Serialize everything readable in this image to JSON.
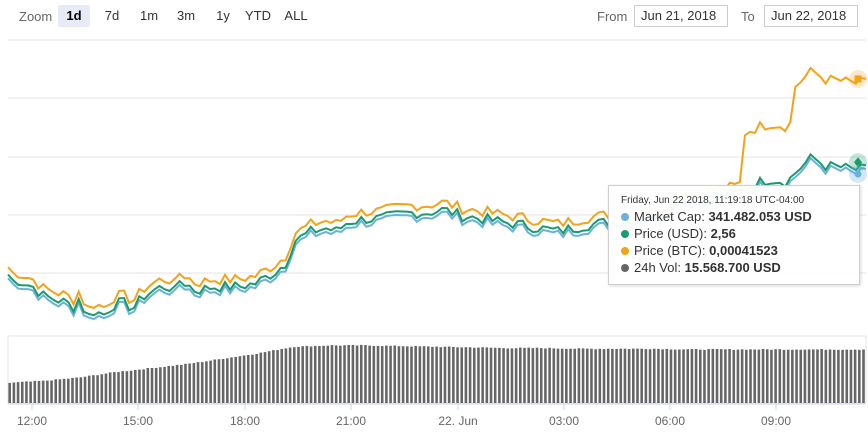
{
  "toolbar": {
    "zoom_label": "Zoom",
    "zoom_buttons": [
      "1d",
      "7d",
      "1m",
      "3m",
      "1y",
      "YTD",
      "ALL"
    ],
    "active_zoom": "1d",
    "from_label": "From",
    "from_value": "Jun 21, 2018",
    "to_label": "To",
    "to_value": "Jun 22, 2018"
  },
  "tooltip": {
    "header": "Friday, Jun 22 2018, 11:19:18 UTC-04:00",
    "rows": [
      {
        "label": "Market Cap:",
        "value": "341.482.053 USD",
        "icon": "circle",
        "color": "#6ab1dd"
      },
      {
        "label": "Price (USD):",
        "value": "2,56",
        "icon": "circle",
        "color": "#1b9a6e"
      },
      {
        "label": "Price (BTC):",
        "value": "0,00041523",
        "icon": "circle",
        "color": "#f3a21a"
      },
      {
        "label": "24h Vol:",
        "value": "15.568.700 USD",
        "icon": "circle",
        "color": "#666666"
      }
    ]
  },
  "chart_data": {
    "type": "line",
    "x_labels": [
      "12:00",
      "15:00",
      "18:00",
      "21:00",
      "22. Jun",
      "03:00",
      "06:00",
      "09:00"
    ],
    "x_range": [
      0,
      24
    ],
    "grid": true,
    "colors": {
      "market_cap": "#6ab1dd",
      "price_usd": "#1b9a6e",
      "price_btc": "#f3a21a",
      "volume": "#666666"
    },
    "price_points": [
      [
        0.0,
        0.5
      ],
      [
        0.1,
        0.4
      ],
      [
        0.3,
        0.4
      ],
      [
        0.5,
        0.35
      ],
      [
        0.7,
        0.3
      ],
      [
        1.0,
        0.15
      ],
      [
        1.3,
        0.1
      ],
      [
        1.6,
        0.05
      ],
      [
        1.9,
        -0.05
      ],
      [
        2.0,
        0.15
      ],
      [
        2.2,
        -0.2
      ],
      [
        2.4,
        -0.1
      ],
      [
        2.7,
        -0.15
      ],
      [
        2.9,
        0.0
      ],
      [
        3.2,
        0.05
      ],
      [
        3.5,
        -0.05
      ],
      [
        3.8,
        0.15
      ],
      [
        4.1,
        0.25
      ],
      [
        4.3,
        0.3
      ],
      [
        4.5,
        0.3
      ],
      [
        4.7,
        0.2
      ],
      [
        4.8,
        0.4
      ],
      [
        5.0,
        0.35
      ],
      [
        5.2,
        0.25
      ],
      [
        5.4,
        0.25
      ],
      [
        5.7,
        0.3
      ],
      [
        6.0,
        0.3
      ],
      [
        6.4,
        0.3
      ],
      [
        6.9,
        0.35
      ],
      [
        7.2,
        0.45
      ],
      [
        7.5,
        0.55
      ],
      [
        7.8,
        0.7
      ],
      [
        8.0,
        1.05
      ],
      [
        8.2,
        1.1
      ],
      [
        8.5,
        1.2
      ],
      [
        8.9,
        1.25
      ],
      [
        9.2,
        1.2
      ],
      [
        9.5,
        1.35
      ],
      [
        10.0,
        1.4
      ],
      [
        10.4,
        1.4
      ],
      [
        10.8,
        1.45
      ],
      [
        11.2,
        1.5
      ],
      [
        11.7,
        1.5
      ],
      [
        12.2,
        1.55
      ],
      [
        12.7,
        1.45
      ],
      [
        13.3,
        1.4
      ],
      [
        13.8,
        1.35
      ],
      [
        14.4,
        1.3
      ],
      [
        14.9,
        1.25
      ],
      [
        15.4,
        1.2
      ],
      [
        15.8,
        1.25
      ],
      [
        16.2,
        1.3
      ],
      [
        16.8,
        1.35
      ],
      [
        17.3,
        1.35
      ],
      [
        17.8,
        1.4
      ],
      [
        18.3,
        1.45
      ],
      [
        18.8,
        1.7
      ],
      [
        19.3,
        1.7
      ],
      [
        19.8,
        1.75
      ],
      [
        20.3,
        1.8
      ],
      [
        20.8,
        1.95
      ],
      [
        21.3,
        2.05
      ],
      [
        21.8,
        2.0
      ],
      [
        22.1,
        2.2
      ],
      [
        22.5,
        2.4
      ],
      [
        22.9,
        2.25
      ],
      [
        23.2,
        2.25
      ],
      [
        23.6,
        2.2
      ],
      [
        24.0,
        2.2
      ]
    ],
    "volume_points": [
      [
        0.0,
        0.3
      ],
      [
        1.0,
        0.33
      ],
      [
        2.0,
        0.38
      ],
      [
        3.0,
        0.46
      ],
      [
        4.0,
        0.52
      ],
      [
        5.0,
        0.58
      ],
      [
        6.0,
        0.66
      ],
      [
        7.0,
        0.74
      ],
      [
        8.0,
        0.84
      ],
      [
        9.0,
        0.86
      ],
      [
        10.0,
        0.86
      ],
      [
        11.0,
        0.85
      ],
      [
        12.0,
        0.84
      ],
      [
        13.0,
        0.83
      ],
      [
        14.0,
        0.82
      ],
      [
        15.0,
        0.82
      ],
      [
        16.0,
        0.81
      ],
      [
        17.0,
        0.81
      ],
      [
        18.0,
        0.81
      ],
      [
        19.0,
        0.8
      ],
      [
        20.0,
        0.8
      ],
      [
        21.0,
        0.8
      ],
      [
        22.0,
        0.8
      ],
      [
        23.0,
        0.8
      ],
      [
        24.0,
        0.8
      ]
    ]
  }
}
